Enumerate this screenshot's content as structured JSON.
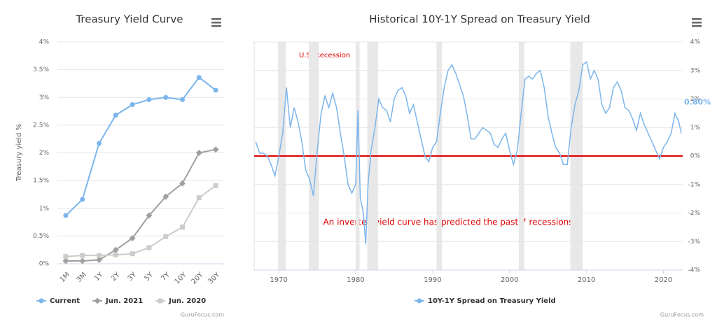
{
  "chart_data": [
    {
      "type": "line",
      "title": "Treasury Yield Curve",
      "y_axis_title": "Treasury yield %",
      "credits": "GuruFocus.com",
      "categories": [
        "1M",
        "3M",
        "1Y",
        "2Y",
        "3Y",
        "5Y",
        "7Y",
        "10Y",
        "20Y",
        "30Y"
      ],
      "series": [
        {
          "name": "Current",
          "color": "#7cb5ec",
          "marker": "circle",
          "values": [
            0.87,
            1.16,
            2.17,
            2.68,
            2.87,
            2.96,
            3.0,
            2.96,
            3.36,
            3.13
          ]
        },
        {
          "name": "Jun. 2021",
          "color": "#a0a0a0",
          "marker": "diamond",
          "values": [
            0.05,
            0.05,
            0.07,
            0.25,
            0.46,
            0.87,
            1.21,
            1.45,
            2.0,
            2.06
          ]
        },
        {
          "name": "Jun. 2020",
          "color": "#cccccc",
          "marker": "square",
          "values": [
            0.13,
            0.15,
            0.15,
            0.16,
            0.18,
            0.29,
            0.49,
            0.66,
            1.19,
            1.41
          ]
        }
      ],
      "ylim": [
        0,
        4
      ],
      "yticks": [
        {
          "value": 0,
          "label": "0%"
        },
        {
          "value": 0.5,
          "label": "0.5%"
        },
        {
          "value": 1,
          "label": "1%"
        },
        {
          "value": 1.5,
          "label": "1.5%"
        },
        {
          "value": 2,
          "label": "2%"
        },
        {
          "value": 2.5,
          "label": "2.5%"
        },
        {
          "value": 3,
          "label": "3%"
        },
        {
          "value": 3.5,
          "label": "3.5%"
        },
        {
          "value": 4,
          "label": "4%"
        }
      ],
      "grid": true
    },
    {
      "type": "line",
      "title": "Historical 10Y-1Y Spread on Treasury Yield",
      "credits": "GuruFocus.com",
      "recession_label": "U.S. Recession",
      "annotation": "An inverted yield curve has predicted the past 7 recessions",
      "recessions": [
        [
          1969.9,
          1970.9
        ],
        [
          1973.9,
          1975.2
        ],
        [
          1980.0,
          1980.5
        ],
        [
          1981.5,
          1982.9
        ],
        [
          1990.5,
          1991.2
        ],
        [
          2001.2,
          2001.9
        ],
        [
          2007.9,
          2009.5
        ]
      ],
      "recession_color": "#e8e8e8",
      "reference_line": {
        "value": 0,
        "color": "#e00000"
      },
      "x": [
        1967.0,
        1967.5,
        1968.0,
        1968.5,
        1969.0,
        1969.5,
        1970.0,
        1970.5,
        1971.0,
        1971.5,
        1972.0,
        1972.5,
        1973.0,
        1973.5,
        1974.0,
        1974.5,
        1975.0,
        1975.5,
        1976.0,
        1976.5,
        1977.0,
        1977.5,
        1978.0,
        1978.5,
        1979.0,
        1979.5,
        1980.0,
        1980.3,
        1980.6,
        1981.0,
        1981.3,
        1981.6,
        1982.0,
        1982.5,
        1983.0,
        1983.5,
        1984.0,
        1984.5,
        1985.0,
        1985.5,
        1986.0,
        1986.5,
        1987.0,
        1987.5,
        1988.0,
        1988.5,
        1989.0,
        1989.5,
        1990.0,
        1990.5,
        1991.0,
        1991.5,
        1992.0,
        1992.5,
        1993.0,
        1993.5,
        1994.0,
        1994.5,
        1995.0,
        1995.5,
        1996.0,
        1996.5,
        1997.0,
        1997.5,
        1998.0,
        1998.5,
        1999.0,
        1999.5,
        2000.0,
        2000.5,
        2001.0,
        2001.5,
        2002.0,
        2002.5,
        2003.0,
        2003.5,
        2004.0,
        2004.5,
        2005.0,
        2005.5,
        2006.0,
        2006.5,
        2007.0,
        2007.5,
        2008.0,
        2008.5,
        2009.0,
        2009.5,
        2010.0,
        2010.5,
        2011.0,
        2011.5,
        2012.0,
        2012.5,
        2013.0,
        2013.5,
        2014.0,
        2014.5,
        2015.0,
        2015.5,
        2016.0,
        2016.5,
        2017.0,
        2017.5,
        2018.0,
        2018.5,
        2019.0,
        2019.5,
        2020.0,
        2020.5,
        2021.0,
        2021.5,
        2022.0,
        2022.3
      ],
      "series": [
        {
          "name": "10Y-1Y Spread on Treasury Yield",
          "color": "#7cb5ec",
          "values": [
            0.5,
            0.1,
            0.1,
            0.0,
            -0.3,
            -0.7,
            0.0,
            0.8,
            2.4,
            1.0,
            1.7,
            1.2,
            0.5,
            -0.5,
            -0.8,
            -1.4,
            0.2,
            1.5,
            2.1,
            1.7,
            2.2,
            1.7,
            0.8,
            0.0,
            -1.0,
            -1.3,
            -1.0,
            1.6,
            -1.5,
            -2.0,
            -3.1,
            -1.0,
            0.2,
            1.0,
            2.0,
            1.7,
            1.6,
            1.2,
            2.0,
            2.3,
            2.4,
            2.1,
            1.5,
            1.8,
            1.2,
            0.6,
            0.0,
            -0.2,
            0.3,
            0.5,
            1.5,
            2.4,
            3.0,
            3.2,
            2.9,
            2.5,
            2.1,
            1.4,
            0.6,
            0.6,
            0.8,
            1.0,
            0.9,
            0.8,
            0.4,
            0.3,
            0.6,
            0.8,
            0.2,
            -0.3,
            0.2,
            1.5,
            2.7,
            2.8,
            2.7,
            2.9,
            3.0,
            2.4,
            1.4,
            0.8,
            0.3,
            0.1,
            -0.3,
            -0.3,
            1.0,
            1.8,
            2.3,
            3.2,
            3.3,
            2.7,
            3.0,
            2.7,
            1.8,
            1.5,
            1.7,
            2.4,
            2.6,
            2.3,
            1.7,
            1.6,
            1.3,
            0.9,
            1.5,
            1.1,
            0.8,
            0.5,
            0.2,
            -0.1,
            0.3,
            0.5,
            0.8,
            1.5,
            1.2,
            0.8
          ],
          "end_label": "0.80%"
        }
      ],
      "xlim": [
        1966.8,
        2022.5
      ],
      "xticks": [
        1970,
        1980,
        1990,
        2000,
        2010,
        2020
      ],
      "ylim": [
        -4,
        4
      ],
      "yticks": [
        {
          "value": -4,
          "label": "-4%"
        },
        {
          "value": -3,
          "label": "-3%"
        },
        {
          "value": -2,
          "label": "-2%"
        },
        {
          "value": -1,
          "label": "-1%"
        },
        {
          "value": 0,
          "label": "0%"
        },
        {
          "value": 1,
          "label": "1%"
        },
        {
          "value": 2,
          "label": "2%"
        },
        {
          "value": 3,
          "label": "3%"
        },
        {
          "value": 4,
          "label": "4%"
        }
      ],
      "grid": true
    }
  ]
}
